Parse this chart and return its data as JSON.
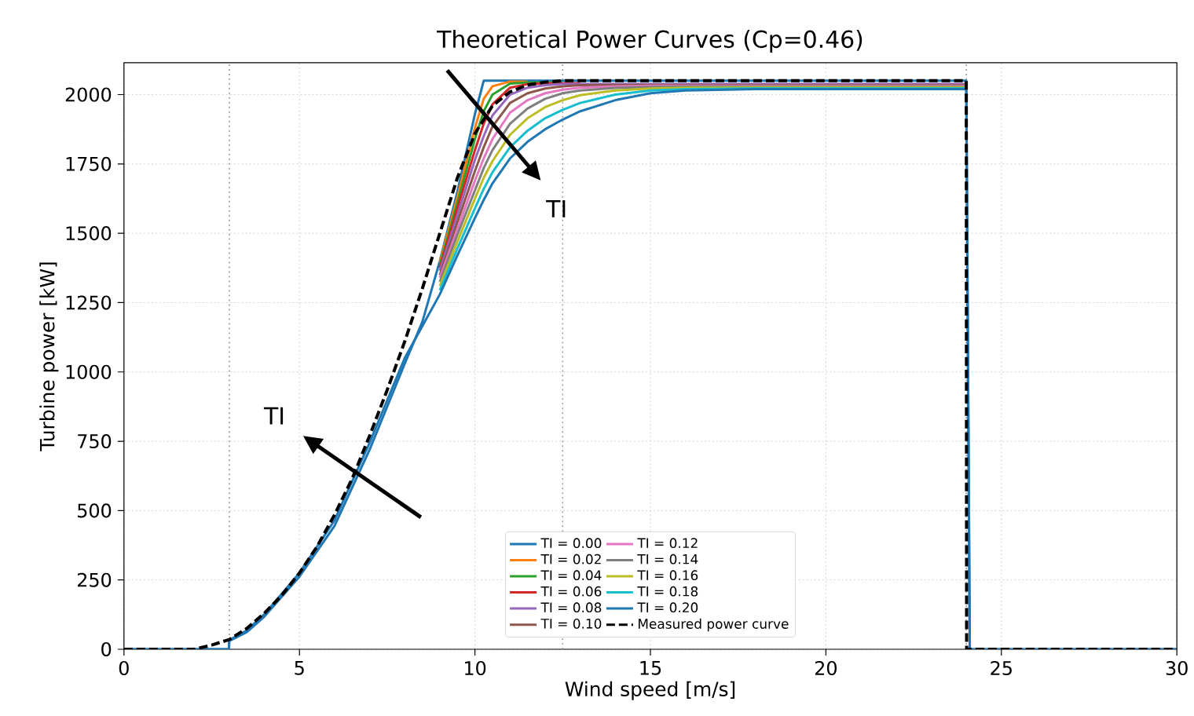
{
  "chart_data": {
    "type": "line",
    "title": "Theoretical Power Curves (Cp=0.46)",
    "xlabel": "Wind speed [m/s]",
    "ylabel": "Turbine power [kW]",
    "x": [
      0,
      2.99,
      3,
      3.5,
      4,
      5,
      6,
      7,
      8,
      8.5,
      9,
      9.5,
      10,
      10.25,
      10.5,
      11,
      11.5,
      12,
      12.5,
      13,
      14,
      15,
      16,
      18,
      20,
      24,
      24.1,
      30
    ],
    "xlim": [
      0,
      30
    ],
    "ylim": [
      0,
      2115
    ],
    "xticks": [
      0,
      5,
      10,
      15,
      20,
      25,
      30
    ],
    "yticks": [
      0,
      250,
      500,
      750,
      1000,
      1250,
      1500,
      1750,
      2000
    ],
    "grid": true,
    "legend": "bottom",
    "marker": "none",
    "series": [
      {
        "name": "TI = 0.00",
        "color": "#1f77b4",
        "values": [
          0,
          0,
          30,
          62,
          118,
          262,
          445,
          720,
          1030,
          1180,
          1400,
          1650,
          1930,
          2050,
          2050,
          2050,
          2050,
          2050,
          2050,
          2050,
          2050,
          2050,
          2050,
          2050,
          2050,
          2050,
          0,
          0
        ]
      },
      {
        "name": "TI = 0.02",
        "color": "#ff7f0e",
        "values": [
          null,
          null,
          null,
          null,
          null,
          null,
          null,
          null,
          null,
          null,
          1395,
          1630,
          1880,
          1985,
          2030,
          2047,
          2047,
          null,
          null,
          null,
          null,
          null,
          null,
          null,
          null,
          null,
          null,
          null
        ]
      },
      {
        "name": "TI = 0.04",
        "color": "#2ca02c",
        "values": [
          null,
          null,
          null,
          null,
          null,
          null,
          null,
          null,
          null,
          null,
          1385,
          1610,
          1840,
          1940,
          2000,
          2040,
          2044,
          2044,
          2044,
          null,
          null,
          null,
          null,
          null,
          null,
          null,
          null,
          null
        ]
      },
      {
        "name": "TI = 0.06",
        "color": "#d62728",
        "values": [
          null,
          null,
          null,
          null,
          null,
          null,
          null,
          null,
          null,
          null,
          1375,
          1590,
          1800,
          1895,
          1965,
          2025,
          2038,
          2041,
          2041,
          2041,
          null,
          null,
          null,
          null,
          null,
          null,
          null,
          null
        ]
      },
      {
        "name": "TI = 0.08",
        "color": "#9467bd",
        "values": [
          null,
          null,
          null,
          null,
          null,
          null,
          null,
          null,
          null,
          null,
          1365,
          1565,
          1765,
          1850,
          1925,
          2000,
          2025,
          2034,
          2038,
          2038,
          2038,
          2038,
          2038,
          2038,
          2038,
          2038,
          null,
          null
        ]
      },
      {
        "name": "TI = 0.10",
        "color": "#8c564b",
        "values": [
          null,
          null,
          null,
          null,
          null,
          null,
          null,
          null,
          null,
          null,
          1350,
          1540,
          1725,
          1810,
          1885,
          1970,
          2005,
          2022,
          2030,
          2034,
          2035,
          2035,
          2035,
          2035,
          2035,
          2035,
          null,
          null
        ]
      },
      {
        "name": "TI = 0.12",
        "color": "#e377c2",
        "values": [
          null,
          null,
          null,
          null,
          null,
          null,
          null,
          null,
          null,
          null,
          1340,
          1515,
          1690,
          1770,
          1840,
          1935,
          1980,
          2005,
          2018,
          2025,
          2030,
          2032,
          2032,
          2032,
          2032,
          2032,
          null,
          null
        ]
      },
      {
        "name": "TI = 0.14",
        "color": "#7f7f7f",
        "values": [
          null,
          null,
          null,
          null,
          null,
          null,
          null,
          null,
          null,
          null,
          1325,
          1495,
          1655,
          1735,
          1800,
          1895,
          1950,
          1985,
          2005,
          2015,
          2024,
          2028,
          2029,
          2029,
          2029,
          2029,
          null,
          null
        ]
      },
      {
        "name": "TI = 0.16",
        "color": "#bcbd22",
        "values": [
          null,
          null,
          null,
          null,
          null,
          null,
          null,
          null,
          null,
          null,
          1310,
          1470,
          1625,
          1700,
          1760,
          1855,
          1915,
          1955,
          1980,
          1998,
          2015,
          2022,
          2025,
          2026,
          2026,
          2026,
          null,
          null
        ]
      },
      {
        "name": "TI = 0.18",
        "color": "#17becf",
        "values": [
          null,
          null,
          null,
          null,
          null,
          null,
          null,
          null,
          null,
          null,
          1295,
          1445,
          1590,
          1660,
          1720,
          1810,
          1870,
          1915,
          1945,
          1970,
          2000,
          2015,
          2020,
          2023,
          2023,
          2023,
          null,
          null
        ]
      },
      {
        "name": "TI = 0.20",
        "color": "#1f77b4",
        "values": [
          0,
          0,
          33,
          68,
          126,
          275,
          465,
          745,
          1050,
          1165,
          1280,
          1420,
          1555,
          1620,
          1680,
          1770,
          1830,
          1875,
          1910,
          1940,
          1980,
          2005,
          2015,
          2020,
          2020,
          2020,
          0,
          0
        ]
      },
      {
        "name": "Measured power curve",
        "color": "#000000",
        "line_style": "dashed",
        "x": [
          0,
          2,
          2.5,
          3,
          3.5,
          4,
          4.5,
          5,
          5.5,
          6,
          6.5,
          7,
          7.5,
          8,
          8.5,
          9,
          9.5,
          10,
          10.5,
          11,
          11.5,
          12,
          12.5,
          24,
          24.01,
          30
        ],
        "values": [
          0,
          0,
          15,
          35,
          75,
          130,
          195,
          275,
          370,
          485,
          615,
          770,
          935,
          1110,
          1300,
          1500,
          1700,
          1860,
          1960,
          2010,
          2035,
          2045,
          2050,
          2050,
          0,
          0
        ]
      }
    ],
    "ref_lines": [
      {
        "axis": "x",
        "value": 3,
        "color": "#999999",
        "line_style": "dotted"
      },
      {
        "axis": "x",
        "value": 12.5,
        "color": "#999999",
        "line_style": "dotted"
      },
      {
        "axis": "x",
        "value": 24,
        "color": "#999999",
        "line_style": "dotted"
      }
    ],
    "annotations": [
      "TI",
      "TI"
    ]
  }
}
